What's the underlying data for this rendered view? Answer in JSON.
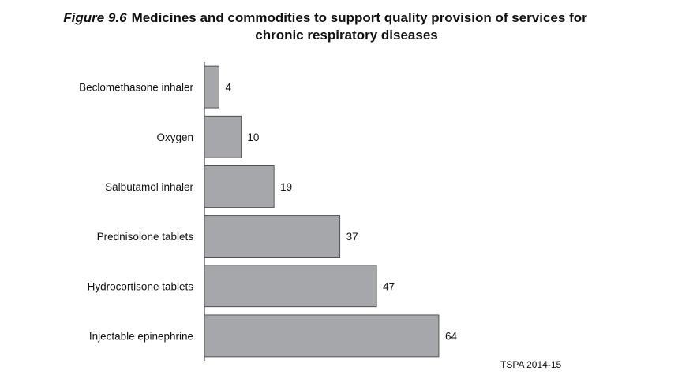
{
  "figure": {
    "label": "Figure 9.6",
    "title_line1": "Medicines and commodities to support quality provision of services for",
    "title_line2": "chronic respiratory diseases"
  },
  "source": "TSPA 2014-15",
  "colors": {
    "bar_fill": "#a6a7aa",
    "bar_stroke": "#3a3a3a",
    "axis": "#222222"
  },
  "chart_data": {
    "type": "bar",
    "orientation": "horizontal",
    "categories": [
      "Beclomethasone inhaler",
      "Oxygen",
      "Salbutamol inhaler",
      "Prednisolone tablets",
      "Hydrocortisone tablets",
      "Injectable epinephrine"
    ],
    "values": [
      4,
      10,
      19,
      37,
      47,
      64
    ],
    "title": "Medicines and commodities to support quality provision of services for chronic respiratory diseases",
    "xlabel": "",
    "ylabel": "",
    "xlim": [
      0,
      100
    ],
    "grid": false,
    "legend": "none"
  }
}
